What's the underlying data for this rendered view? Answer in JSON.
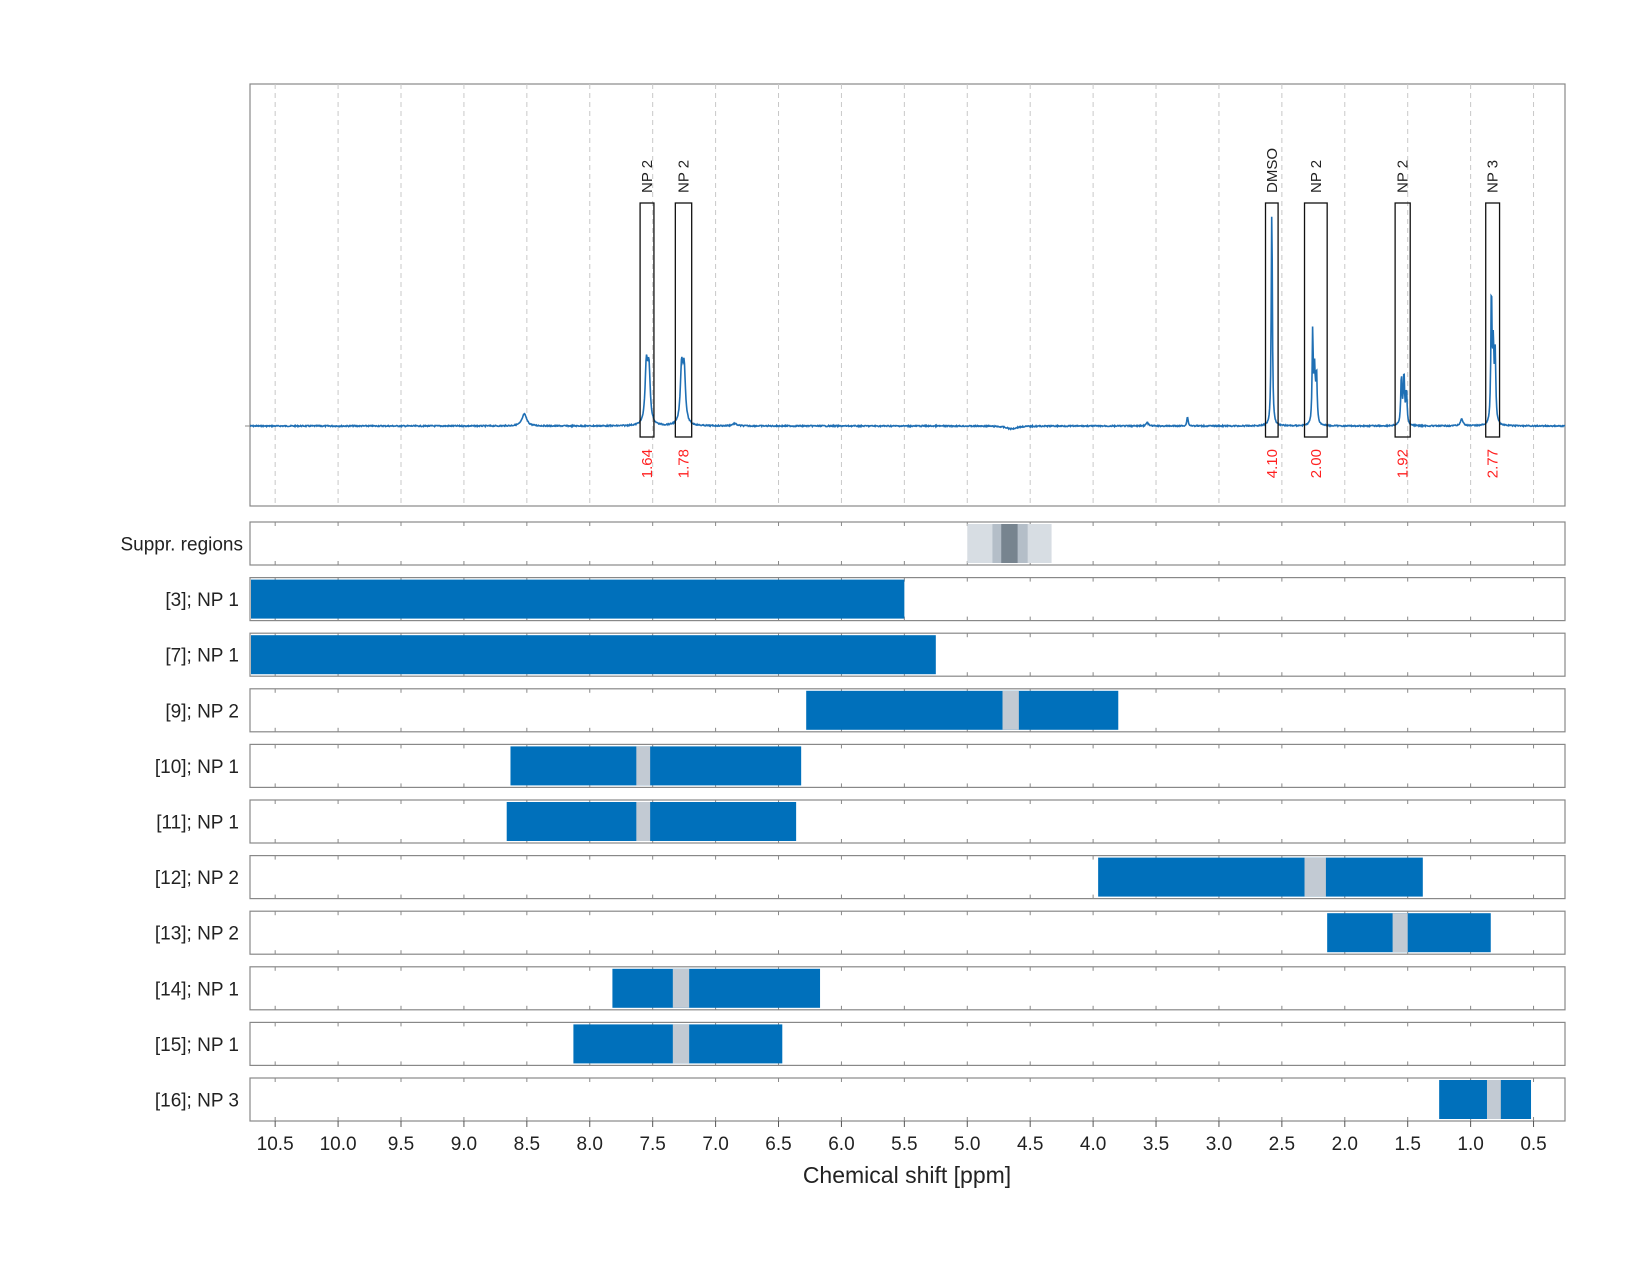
{
  "chart_data": {
    "type": "nmr_spectrum_with_ranges",
    "xlabel": "Chemical shift [ppm]",
    "xlim": [
      10.7,
      0.25
    ],
    "x_ticks": [
      10.5,
      10.0,
      9.5,
      9.0,
      8.5,
      8.0,
      7.5,
      7.0,
      6.5,
      6.0,
      5.5,
      5.0,
      4.5,
      4.0,
      3.5,
      3.0,
      2.5,
      2.0,
      1.5,
      1.0,
      0.5
    ],
    "x_tick_labels": [
      "10.5",
      "10.0",
      "9.5",
      "9.0",
      "8.5",
      "8.0",
      "7.5",
      "7.0",
      "6.5",
      "6.0",
      "5.5",
      "5.0",
      "4.5",
      "4.0",
      "3.5",
      "3.0",
      "2.5",
      "2.0",
      "1.5",
      "1.0",
      "0.5"
    ],
    "grid": "dashed vertical",
    "colors": {
      "spectrum": "#1f6fb4",
      "bar": "#0070bb",
      "gap": "#c2cad3",
      "integral": "#ff2020",
      "suppr_light": "#d7dde3",
      "suppr_mid": "#b4bec8",
      "suppr_dark": "#77848f",
      "frame": "#888888",
      "grid": "#c8c8c8"
    },
    "spectrum": {
      "peaks": [
        {
          "center": 8.52,
          "height": 0.05,
          "width": 0.022
        },
        {
          "center": 7.55,
          "height": 0.24,
          "width": 0.012
        },
        {
          "center": 7.53,
          "height": 0.22,
          "width": 0.012
        },
        {
          "center": 7.27,
          "height": 0.23,
          "width": 0.012
        },
        {
          "center": 7.25,
          "height": 0.22,
          "width": 0.012
        },
        {
          "center": 6.85,
          "height": 0.01,
          "width": 0.02
        },
        {
          "center": 4.65,
          "height": -0.012,
          "width": 0.05
        },
        {
          "center": 3.57,
          "height": 0.015,
          "width": 0.01
        },
        {
          "center": 3.25,
          "height": 0.04,
          "width": 0.006
        },
        {
          "center": 2.58,
          "height": 0.93,
          "width": 0.005
        },
        {
          "center": 2.255,
          "height": 0.39,
          "width": 0.005
        },
        {
          "center": 2.24,
          "height": 0.22,
          "width": 0.006
        },
        {
          "center": 2.225,
          "height": 0.21,
          "width": 0.006
        },
        {
          "center": 1.55,
          "height": 0.2,
          "width": 0.006
        },
        {
          "center": 1.53,
          "height": 0.21,
          "width": 0.006
        },
        {
          "center": 1.51,
          "height": 0.14,
          "width": 0.006
        },
        {
          "center": 1.07,
          "height": 0.03,
          "width": 0.012
        },
        {
          "center": 0.835,
          "height": 0.57,
          "width": 0.005
        },
        {
          "center": 0.82,
          "height": 0.31,
          "width": 0.006
        },
        {
          "center": 0.805,
          "height": 0.29,
          "width": 0.006
        }
      ],
      "ylim": [
        -0.35,
        1.4
      ]
    },
    "annotations": [
      {
        "label": "NP 2",
        "x_from": 7.6,
        "x_to": 7.49,
        "integral": "1.64"
      },
      {
        "label": "NP 2",
        "x_from": 7.32,
        "x_to": 7.19,
        "integral": "1.78"
      },
      {
        "label": "DMSO",
        "x_from": 2.63,
        "x_to": 2.53,
        "integral": "4.10"
      },
      {
        "label": "NP 2",
        "x_from": 2.32,
        "x_to": 2.14,
        "integral": "2.00"
      },
      {
        "label": "NP 2",
        "x_from": 1.6,
        "x_to": 1.48,
        "integral": "1.92"
      },
      {
        "label": "NP 3",
        "x_from": 0.88,
        "x_to": 0.77,
        "integral": "2.77"
      }
    ],
    "suppr_regions": {
      "label": "Suppr. regions",
      "bands": [
        {
          "from": 5.0,
          "to": 4.33,
          "shade": "light"
        },
        {
          "from": 4.8,
          "to": 4.52,
          "shade": "mid"
        },
        {
          "from": 4.73,
          "to": 4.6,
          "shade": "dark"
        }
      ]
    },
    "ranges": [
      {
        "label": "[3]; NP 1",
        "from": 10.7,
        "to": 5.5,
        "gap": null
      },
      {
        "label": "[7]; NP 1",
        "from": 10.7,
        "to": 5.25,
        "gap": null
      },
      {
        "label": "[9]; NP 2",
        "from": 6.28,
        "to": 3.8,
        "gap": [
          4.72,
          4.59
        ]
      },
      {
        "label": "[10]; NP 1",
        "from": 8.63,
        "to": 6.32,
        "gap": [
          7.63,
          7.52
        ]
      },
      {
        "label": "[11]; NP 1",
        "from": 8.66,
        "to": 6.36,
        "gap": [
          7.63,
          7.52
        ]
      },
      {
        "label": "[12]; NP 2",
        "from": 3.96,
        "to": 1.38,
        "gap": [
          2.32,
          2.15
        ]
      },
      {
        "label": "[13]; NP 2",
        "from": 2.14,
        "to": 0.84,
        "gap": [
          1.62,
          1.5
        ]
      },
      {
        "label": "[14]; NP 1",
        "from": 7.82,
        "to": 6.17,
        "gap": [
          7.34,
          7.21
        ]
      },
      {
        "label": "[15]; NP 1",
        "from": 8.13,
        "to": 6.47,
        "gap": [
          7.34,
          7.21
        ]
      },
      {
        "label": "[16]; NP 3",
        "from": 1.25,
        "to": 0.52,
        "gap": [
          0.87,
          0.76
        ]
      }
    ]
  }
}
